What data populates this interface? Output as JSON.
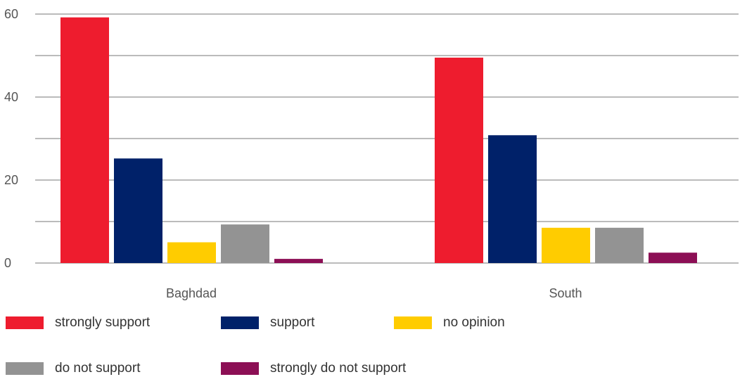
{
  "chart_data": {
    "type": "bar",
    "categories": [
      "Baghdad",
      "South"
    ],
    "series": [
      {
        "name": "strongly support",
        "color": "#ee1c2e",
        "values": [
          59.2,
          49.5
        ]
      },
      {
        "name": "support",
        "color": "#002169",
        "values": [
          25.2,
          30.8
        ]
      },
      {
        "name": "no opinion",
        "color": "#ffcc00",
        "values": [
          5.0,
          8.5
        ]
      },
      {
        "name": "do not support",
        "color": "#939393",
        "values": [
          9.3,
          8.5
        ]
      },
      {
        "name": "strongly do not support",
        "color": "#8c0f55",
        "values": [
          1.0,
          2.5
        ]
      }
    ],
    "yticks": [
      "0",
      "20",
      "40",
      "60"
    ],
    "ylim": [
      0,
      60
    ],
    "gridlines": [
      0,
      10,
      20,
      30,
      40,
      50,
      60
    ],
    "grid": true,
    "legend_position": "bottom"
  }
}
